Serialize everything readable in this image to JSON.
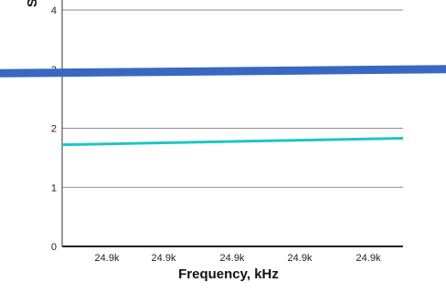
{
  "chart_data": {
    "type": "line",
    "xlabel": "Frequency, kHz",
    "ylabel": "S",
    "ylim": [
      0,
      4
    ],
    "yticks": [
      "0",
      "1",
      "2",
      "3",
      "4"
    ],
    "xticks": [
      "24.9k",
      "24.9k",
      "24.9k",
      "24.9k",
      "24.9k"
    ],
    "grid": true,
    "series": [
      {
        "color": "#20c5c5",
        "points": [
          [
            0,
            1.72
          ],
          [
            1,
            1.83
          ]
        ]
      },
      {
        "color": "#3a67c2",
        "points": [
          [
            0,
            2.93
          ],
          [
            1,
            3.0
          ]
        ]
      }
    ]
  }
}
